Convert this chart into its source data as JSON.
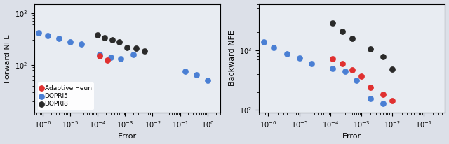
{
  "left": {
    "xlabel": "Error",
    "ylabel": "Forward NFE",
    "xlim": [
      5e-07,
      3.0
    ],
    "ylim": [
      12,
      1500
    ],
    "heun": {
      "error": [
        0.00012,
        0.00022
      ],
      "nfe": [
        150,
        125
      ]
    },
    "dopri5": {
      "error": [
        7e-07,
        1.5e-06,
        4e-06,
        1e-05,
        2.5e-05,
        0.00012,
        0.0003,
        0.0007,
        0.002,
        0.15,
        0.4,
        1.0
      ],
      "nfe": [
        420,
        370,
        320,
        280,
        250,
        160,
        140,
        130,
        160,
        75,
        65,
        50
      ]
    },
    "dopri8": {
      "error": [
        0.0001,
        0.00018,
        0.00035,
        0.0006,
        0.0012,
        0.0025,
        0.005
      ],
      "nfe": [
        380,
        330,
        300,
        280,
        220,
        210,
        185
      ]
    }
  },
  "right": {
    "xlabel": "Error",
    "ylabel": "Backward NFE",
    "xlim": [
      5e-07,
      0.5
    ],
    "ylim": [
      90,
      6000
    ],
    "heun": {
      "error": [
        0.00012,
        0.00025,
        0.0005,
        0.001,
        0.002,
        0.005,
        0.01
      ],
      "nfe": [
        730,
        600,
        470,
        370,
        240,
        185,
        145
      ]
    },
    "dopri5": {
      "error": [
        7e-07,
        1.5e-06,
        4e-06,
        1e-05,
        2.5e-05,
        0.00012,
        0.0003,
        0.0007,
        0.002,
        0.005
      ],
      "nfe": [
        1400,
        1100,
        880,
        740,
        600,
        490,
        440,
        310,
        155,
        130
      ]
    },
    "dopri8": {
      "error": [
        0.00012,
        0.00025,
        0.0005,
        0.002,
        0.005,
        0.01
      ],
      "nfe": [
        2900,
        2100,
        1600,
        1050,
        780,
        480
      ]
    }
  },
  "colors": {
    "heun": "#e03030",
    "dopri5": "#4a7fd4",
    "dopri8": "#2a2a2a"
  },
  "marker_size": 28,
  "background_color": "#e8ecf2",
  "fig_facecolor": "#dce0e8"
}
